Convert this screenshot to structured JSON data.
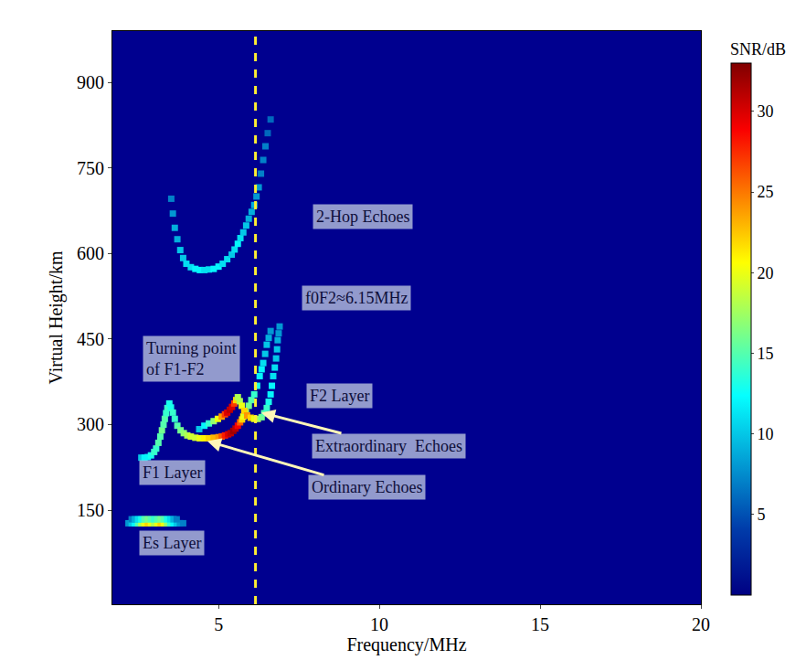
{
  "chart_data": {
    "type": "heatmap",
    "xlabel": "Frequency/MHz",
    "ylabel": "Virtual Height/km",
    "xlim": [
      1.7,
      20
    ],
    "xticks": [
      5,
      10,
      15,
      20
    ],
    "ylim": [
      -15,
      990
    ],
    "yticks": [
      150,
      300,
      450,
      600,
      750,
      900
    ],
    "grid": false,
    "colorbar": {
      "title": "SNR/dB",
      "range": [
        0,
        33
      ],
      "ticks": [
        5,
        10,
        15,
        20,
        25,
        30
      ]
    },
    "reference_line": {
      "x": 6.15,
      "line_style": "dashed"
    },
    "cells": {
      "x": [
        2.6,
        2.7,
        2.8,
        2.9,
        3.0,
        3.06,
        3.13,
        3.19,
        3.24,
        3.29,
        3.33,
        3.37,
        3.41,
        3.47,
        3.52,
        3.58,
        3.64,
        3.72,
        3.82,
        3.92,
        4.03,
        4.14,
        4.28,
        4.42,
        4.56,
        4.7,
        4.85,
        5.0,
        5.1,
        5.2,
        5.3,
        5.38,
        5.46,
        5.53,
        5.6,
        5.67,
        5.73,
        5.77,
        5.85,
        5.94,
        6.02,
        6.11,
        6.2,
        6.28,
        6.34,
        6.39,
        6.45,
        6.5,
        6.56,
        6.62,
        4.4,
        4.56,
        4.7,
        4.85,
        4.98,
        5.1,
        5.2,
        5.27,
        5.35,
        5.42,
        5.49,
        5.55,
        5.6,
        5.66,
        5.72,
        5.8,
        5.89,
        6.0,
        6.11,
        6.22,
        6.34,
        6.42,
        6.5,
        6.56,
        6.62,
        6.66,
        6.7,
        6.75,
        6.79,
        6.82,
        6.84,
        6.87,
        6.9,
        3.53,
        3.58,
        3.64,
        3.72,
        3.81,
        3.9,
        4.0,
        4.14,
        4.28,
        4.42,
        4.56,
        4.7,
        4.85,
        5.0,
        5.13,
        5.27,
        5.41,
        5.5,
        5.6,
        5.68,
        5.77,
        5.86,
        5.94,
        6.03,
        6.11,
        6.18,
        6.25,
        6.32,
        6.39,
        6.46,
        6.53,
        6.62,
        2.2,
        2.3,
        2.4,
        2.5,
        2.6,
        2.7,
        2.8,
        2.9,
        3.0,
        3.1,
        3.2,
        3.3,
        3.4,
        3.5,
        3.6,
        3.7,
        3.8,
        3.9,
        2.3,
        2.4,
        2.5,
        2.6,
        2.7,
        2.8,
        2.9,
        3.0,
        3.1,
        3.2,
        3.3,
        3.4,
        3.5,
        3.6,
        3.7
      ],
      "y": [
        242,
        242,
        243,
        246,
        252,
        258,
        268,
        279,
        290,
        300,
        310,
        320,
        329,
        337,
        330,
        321,
        310,
        298,
        290,
        285,
        281,
        279,
        277,
        276,
        276,
        276,
        277,
        278,
        279,
        281,
        283,
        285,
        289,
        293,
        298,
        304,
        309,
        314,
        322,
        333,
        343,
        353,
        368,
        385,
        397,
        408,
        424,
        440,
        452,
        464,
        292,
        298,
        302,
        306,
        310,
        314,
        318,
        321,
        326,
        331,
        337,
        343,
        348,
        341,
        333,
        324,
        316,
        312,
        310,
        310,
        313,
        320,
        329,
        340,
        353,
        368,
        385,
        400,
        416,
        432,
        448,
        460,
        472,
        696,
        670,
        645,
        625,
        606,
        592,
        582,
        576,
        573,
        571,
        571,
        572,
        573,
        577,
        582,
        590,
        598,
        607,
        617,
        627,
        637,
        649,
        661,
        673,
        685,
        700,
        716,
        740,
        764,
        788,
        811,
        835,
        127,
        127,
        127,
        127,
        127,
        127,
        127,
        127,
        127,
        127,
        127,
        127,
        127,
        127,
        127,
        127,
        127,
        127,
        134,
        134,
        134,
        134,
        134,
        134,
        134,
        134,
        134,
        134,
        134,
        134,
        134,
        134,
        134
      ],
      "snr": [
        10,
        12,
        12,
        13,
        14,
        14,
        15,
        15,
        16,
        15,
        15,
        14,
        14,
        13,
        13,
        14,
        14,
        15,
        16,
        17,
        18,
        19,
        19,
        20,
        21,
        22,
        23,
        24,
        26,
        28,
        30,
        31,
        32,
        31,
        29,
        26,
        22,
        20,
        18,
        16,
        15,
        14,
        13,
        12,
        12,
        11,
        10,
        10,
        9,
        8,
        10,
        12,
        14,
        17,
        20,
        24,
        27,
        30,
        31,
        30,
        27,
        22,
        18,
        18,
        20,
        22,
        24,
        22,
        20,
        18,
        16,
        15,
        14,
        13,
        12,
        12,
        11,
        11,
        10,
        10,
        9,
        8,
        8,
        7,
        8,
        9,
        9,
        10,
        10,
        11,
        11,
        12,
        12,
        11,
        11,
        12,
        12,
        11,
        11,
        10,
        11,
        12,
        11,
        10,
        10,
        9,
        9,
        9,
        8,
        8,
        7,
        7,
        7,
        6,
        6,
        8,
        10,
        12,
        15,
        18,
        20,
        22,
        20,
        18,
        20,
        22,
        20,
        17,
        14,
        12,
        10,
        8,
        7,
        7,
        9,
        11,
        13,
        15,
        16,
        15,
        14,
        15,
        16,
        15,
        13,
        11,
        9,
        7
      ]
    },
    "annotations": [
      {
        "text": "2-Hop Echoes",
        "x": 9.5,
        "y": 664
      },
      {
        "text": "f0F2≈6.15MHz",
        "x": 9.3,
        "y": 522
      },
      {
        "text": [
          "Turning point",
          "of F1-F2"
        ],
        "x": 4.17,
        "y": 416
      },
      {
        "text": "F2 Layer",
        "x": 8.75,
        "y": 350
      },
      {
        "text": "Extraordinary  Echoes",
        "x": 10.3,
        "y": 263,
        "arrow_to": [
          6.33,
          321
        ]
      },
      {
        "text": "F1 Layer",
        "x": 3.55,
        "y": 216
      },
      {
        "text": "Ordinary Echoes",
        "x": 9.6,
        "y": 190,
        "arrow_to": [
          4.65,
          271
        ]
      },
      {
        "text": "Es Layer",
        "x": 3.55,
        "y": 92
      }
    ]
  }
}
